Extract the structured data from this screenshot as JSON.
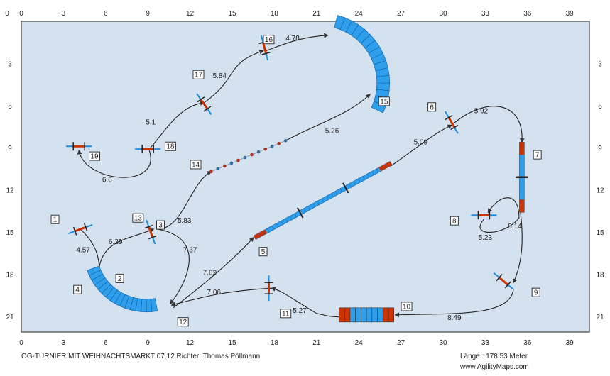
{
  "course": {
    "grid": {
      "x_ticks": [
        "0",
        "3",
        "6",
        "9",
        "12",
        "15",
        "18",
        "21",
        "24",
        "27",
        "30",
        "33",
        "36",
        "39"
      ],
      "y_ticks": [
        "3",
        "6",
        "9",
        "12",
        "15",
        "18",
        "21"
      ],
      "y_top_label": "0",
      "unit_meters": 3
    },
    "numbers": [
      {
        "n": "1",
        "x": 2.4,
        "y": 14.1
      },
      {
        "n": "2",
        "x": 7.0,
        "y": 18.3
      },
      {
        "n": "3",
        "x": 9.9,
        "y": 14.5
      },
      {
        "n": "4",
        "x": 4.0,
        "y": 19.1
      },
      {
        "n": "5",
        "x": 17.2,
        "y": 16.4
      },
      {
        "n": "6",
        "x": 29.2,
        "y": 6.1
      },
      {
        "n": "7",
        "x": 36.7,
        "y": 9.5
      },
      {
        "n": "8",
        "x": 30.8,
        "y": 14.2
      },
      {
        "n": "9",
        "x": 36.6,
        "y": 19.3
      },
      {
        "n": "10",
        "x": 27.4,
        "y": 20.3
      },
      {
        "n": "11",
        "x": 18.8,
        "y": 20.8
      },
      {
        "n": "12",
        "x": 11.5,
        "y": 21.4
      },
      {
        "n": "13",
        "x": 8.3,
        "y": 14.0
      },
      {
        "n": "14",
        "x": 12.4,
        "y": 10.2
      },
      {
        "n": "15",
        "x": 25.8,
        "y": 5.7
      },
      {
        "n": "16",
        "x": 17.6,
        "y": 1.3
      },
      {
        "n": "17",
        "x": 12.6,
        "y": 3.8
      },
      {
        "n": "18",
        "x": 10.6,
        "y": 8.9
      },
      {
        "n": "19",
        "x": 5.2,
        "y": 9.6
      }
    ],
    "distances": [
      {
        "d": "4.57",
        "x": 4.4,
        "y": 16.3
      },
      {
        "d": "6.29",
        "x": 6.7,
        "y": 15.7
      },
      {
        "d": "7.37",
        "x": 12.0,
        "y": 16.3
      },
      {
        "d": "5.83",
        "x": 11.6,
        "y": 14.2
      },
      {
        "d": "7.62",
        "x": 13.4,
        "y": 17.9
      },
      {
        "d": "7.06",
        "x": 13.7,
        "y": 19.3
      },
      {
        "d": "5.27",
        "x": 19.8,
        "y": 20.6
      },
      {
        "d": "8.49",
        "x": 30.8,
        "y": 21.1
      },
      {
        "d": "8.14",
        "x": 35.1,
        "y": 14.6
      },
      {
        "d": "5.23",
        "x": 33.0,
        "y": 15.4
      },
      {
        "d": "5.92",
        "x": 32.7,
        "y": 6.4
      },
      {
        "d": "5.09",
        "x": 28.4,
        "y": 8.6
      },
      {
        "d": "5.26",
        "x": 22.1,
        "y": 7.8
      },
      {
        "d": "5.84",
        "x": 14.1,
        "y": 3.9
      },
      {
        "d": "4.78",
        "x": 19.3,
        "y": 1.2
      },
      {
        "d": "5.1",
        "x": 9.2,
        "y": 7.2
      },
      {
        "d": "6.6",
        "x": 6.1,
        "y": 11.3
      }
    ],
    "colors": {
      "field": "#d4e1ee",
      "tunnel": "#2f9fec",
      "contact": "#cc3300",
      "bar": "#1f8ee0",
      "path": "#222222"
    }
  },
  "footer": {
    "event": "OG-TURNIER MIT WEIHNACHTSMARKT 07.12 Richter: Thomas Pöllmann",
    "length": "Länge : 178.53 Meter",
    "site": "www.AgilityMaps.com"
  }
}
